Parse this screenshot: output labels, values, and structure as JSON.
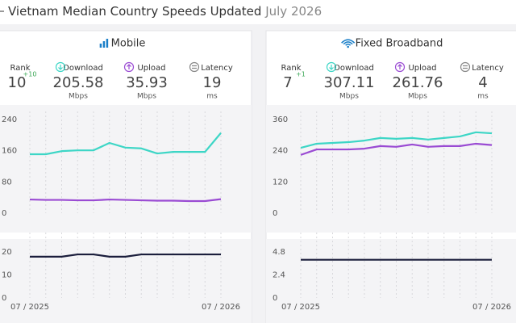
{
  "header": {
    "title": "Vietnam Median Country Speeds Updated",
    "date": "July 2026"
  },
  "panels": [
    {
      "title": "Mobile",
      "rank": {
        "label": "Rank",
        "value": 10,
        "change": "+10"
      },
      "stats": [
        {
          "value": 205.58,
          "unit": "Mbps"
        },
        {
          "value": 35.93,
          "unit": "Mbps"
        },
        {
          "value": 19,
          "unit": "ms"
        }
      ]
    },
    {
      "title": "Fixed Broadband",
      "rank": {
        "label": "Rank",
        "value": 7,
        "change": "+1"
      },
      "stats": [
        {
          "value": 307.11,
          "unit": "Mbps"
        },
        {
          "value": 261.76,
          "unit": "Mbps"
        },
        {
          "value": 4,
          "unit": "ms"
        }
      ]
    }
  ],
  "chart_data": [
    {
      "type": "line",
      "categories": [
        null,
        null,
        null,
        null,
        null,
        null,
        null,
        null,
        null,
        null,
        null,
        null,
        null
      ],
      "series": [
        {
          "name": "Download",
          "color": "#3dd6c6",
          "values": [
            151,
            151,
            159,
            161,
            161,
            180,
            168,
            166,
            153,
            157,
            157,
            157,
            205.58
          ]
        },
        {
          "name": "Upload",
          "color": "#9a4bd3",
          "values": [
            35,
            34,
            34,
            33,
            33,
            35,
            34,
            33,
            32,
            32,
            31,
            31,
            35.93
          ]
        }
      ],
      "ylim": [
        0,
        240
      ],
      "yticks": [
        0,
        80,
        160,
        240
      ]
    },
    {
      "type": "line",
      "categories": [
        "07 / 2025",
        null,
        null,
        null,
        null,
        null,
        null,
        null,
        null,
        null,
        null,
        null,
        "07 / 2026"
      ],
      "series": [
        {
          "name": "Latency",
          "color": "#1b1e3c",
          "values": [
            18,
            18,
            18,
            19,
            19,
            18,
            18,
            19,
            19,
            19,
            19,
            19,
            19
          ]
        }
      ],
      "ylim": [
        0,
        25
      ],
      "yticks": [
        0,
        10,
        20
      ]
    },
    {
      "type": "line",
      "categories": [
        null,
        null,
        null,
        null,
        null,
        null,
        null,
        null,
        null,
        null,
        null,
        null,
        null
      ],
      "series": [
        {
          "name": "Download",
          "color": "#3dd6c6",
          "values": [
            251,
            267,
            270,
            273,
            279,
            289,
            286,
            289,
            283,
            289,
            295,
            311,
            307.11
          ]
        },
        {
          "name": "Upload",
          "color": "#9a4bd3",
          "values": [
            224,
            245,
            245,
            245,
            248,
            258,
            255,
            264,
            255,
            258,
            258,
            267,
            261.76
          ]
        }
      ],
      "ylim": [
        0,
        360
      ],
      "yticks": [
        0,
        120,
        240,
        360
      ]
    },
    {
      "type": "line",
      "categories": [
        "07 / 2025",
        null,
        null,
        null,
        null,
        null,
        null,
        null,
        null,
        null,
        null,
        null,
        "07 / 2026"
      ],
      "series": [
        {
          "name": "Latency",
          "color": "#1b1e3c",
          "values": [
            4,
            4,
            4,
            4,
            4,
            4,
            4,
            4,
            4,
            4,
            4,
            4,
            4
          ]
        }
      ],
      "ylim": [
        0,
        6
      ],
      "yticks": [
        0,
        2.4,
        4.8
      ]
    }
  ]
}
